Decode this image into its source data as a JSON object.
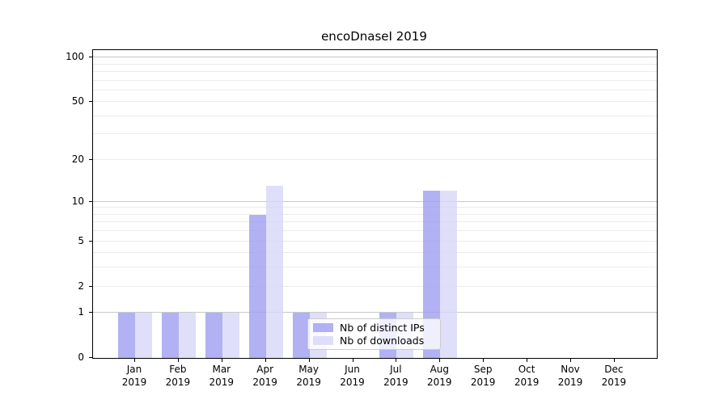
{
  "chart_data": {
    "type": "bar",
    "title": "encoDnaseI 2019",
    "categories": [
      "Jan",
      "Feb",
      "Mar",
      "Apr",
      "May",
      "Jun",
      "Jul",
      "Aug",
      "Sep",
      "Oct",
      "Nov",
      "Dec"
    ],
    "category_year": "2019",
    "series": [
      {
        "name": "Nb of distinct IPs",
        "color": "#9d9df1",
        "values": [
          1,
          1,
          1,
          8,
          1,
          0,
          1,
          12,
          0,
          0,
          0,
          0
        ]
      },
      {
        "name": "Nb of downloads",
        "color": "#d7d7f7",
        "values": [
          1,
          1,
          1,
          13,
          1,
          0,
          1,
          12,
          0,
          0,
          0,
          0
        ]
      }
    ],
    "xlabel": "",
    "ylabel": "",
    "y_scale": "log1p",
    "y_ticks": [
      0,
      1,
      2,
      5,
      10,
      20,
      50,
      100
    ],
    "y_gridlines_minor": [
      2,
      3,
      4,
      5,
      6,
      7,
      8,
      9,
      20,
      30,
      40,
      50,
      60,
      70,
      80,
      90
    ],
    "y_gridlines_major": [
      1,
      10,
      100
    ],
    "ylim": [
      0,
      112
    ],
    "grid": true,
    "legend_position": "lower center",
    "colors": {
      "grid_minor": "#ebebeb",
      "grid_major": "#c8c8c8",
      "axis": "#000000",
      "background": "#ffffff"
    }
  }
}
